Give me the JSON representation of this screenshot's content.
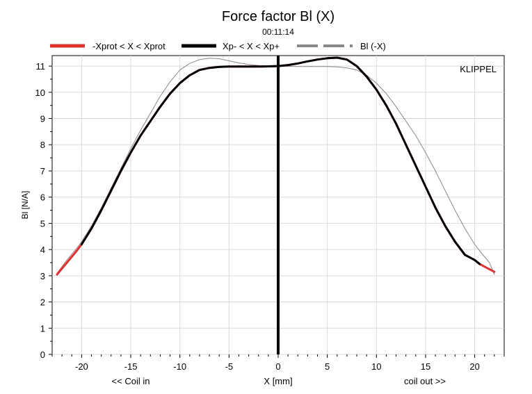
{
  "chart_data": {
    "type": "line",
    "title": "Force factor Bl (X)",
    "subtitle": "00:11:14",
    "watermark": "KLIPPEL",
    "xlabel": "X [mm]",
    "ylabel": "Bl [N/A]",
    "xlabel_left": "<< Coil in",
    "xlabel_right": "coil out >>",
    "xlim": [
      -23,
      23
    ],
    "ylim": [
      0,
      11.4
    ],
    "xticks": [
      -20,
      -15,
      -10,
      -5,
      0,
      5,
      10,
      15,
      20
    ],
    "yticks": [
      0,
      1,
      2,
      3,
      4,
      5,
      6,
      7,
      8,
      9,
      10,
      11
    ],
    "grid": true,
    "legend_position": "top",
    "legend": [
      {
        "label": "-Xprot < X < Xprot",
        "color": "#e03030",
        "style": "solid"
      },
      {
        "label": "Xp- < X < Xp+",
        "color": "#000000",
        "style": "solid"
      },
      {
        "label": "Bl (-X)",
        "color": "#888888",
        "style": "dashed"
      }
    ],
    "series": [
      {
        "name": "-Xprot < X < Xprot",
        "color": "#e03030",
        "x": [
          -22.5,
          -21.5,
          -20.5,
          -20,
          -19,
          -18,
          -17,
          -16,
          -15,
          -14,
          -13,
          -12,
          -11,
          -10,
          -9,
          -8,
          -7,
          -6,
          -5,
          -4,
          -3,
          -2,
          -1,
          0,
          1,
          2,
          3,
          4,
          5,
          6,
          7,
          8,
          9,
          10,
          11,
          12,
          13,
          14,
          15,
          16,
          17,
          18,
          19,
          20,
          20.5,
          21.5,
          22
        ],
        "y": [
          3.05,
          3.5,
          3.95,
          4.2,
          4.8,
          5.5,
          6.25,
          7.0,
          7.7,
          8.35,
          8.9,
          9.45,
          9.95,
          10.35,
          10.65,
          10.85,
          10.93,
          10.97,
          10.98,
          10.98,
          10.98,
          10.98,
          10.99,
          11.0,
          11.04,
          11.1,
          11.18,
          11.25,
          11.3,
          11.32,
          11.25,
          11.0,
          10.6,
          10.1,
          9.5,
          8.8,
          8.0,
          7.2,
          6.4,
          5.6,
          4.9,
          4.3,
          3.8,
          3.6,
          3.45,
          3.25,
          3.15
        ]
      },
      {
        "name": "Xp- < X < Xp+",
        "color": "#000000",
        "x": [
          -20,
          -19,
          -18,
          -17,
          -16,
          -15,
          -14,
          -13,
          -12,
          -11,
          -10,
          -9,
          -8,
          -7,
          -6,
          -5,
          -4,
          -3,
          -2,
          -1,
          0,
          1,
          2,
          3,
          4,
          5,
          6,
          7,
          8,
          9,
          10,
          11,
          12,
          13,
          14,
          15,
          16,
          17,
          18,
          19,
          20,
          20.5
        ],
        "y": [
          4.2,
          4.8,
          5.5,
          6.25,
          7.0,
          7.7,
          8.35,
          8.9,
          9.45,
          9.95,
          10.35,
          10.65,
          10.85,
          10.93,
          10.97,
          10.98,
          10.98,
          10.98,
          10.98,
          10.99,
          11.0,
          11.04,
          11.1,
          11.18,
          11.25,
          11.3,
          11.32,
          11.25,
          11.0,
          10.6,
          10.1,
          9.5,
          8.8,
          8.0,
          7.2,
          6.4,
          5.6,
          4.9,
          4.3,
          3.8,
          3.6,
          3.45
        ]
      },
      {
        "name": "Bl (-X)",
        "color": "#888888",
        "x": [
          -22.5,
          -21.5,
          -20.5,
          -20,
          -19,
          -18,
          -17,
          -16,
          -15,
          -14,
          -13,
          -12,
          -11,
          -10,
          -9,
          -8,
          -7,
          -6,
          -5,
          -4,
          -3,
          -2,
          -1,
          0,
          1,
          2,
          3,
          4,
          5,
          6,
          7,
          8,
          9,
          10,
          11,
          12,
          13,
          14,
          15,
          16,
          17,
          18,
          19,
          20,
          20.5,
          21.5,
          22
        ],
        "y": [
          3.1,
          3.6,
          4.05,
          4.3,
          4.9,
          5.6,
          6.35,
          7.1,
          7.85,
          8.55,
          9.2,
          9.85,
          10.4,
          10.85,
          11.1,
          11.25,
          11.3,
          11.28,
          11.2,
          11.12,
          11.06,
          11.02,
          11.0,
          11.0,
          10.99,
          10.98,
          10.98,
          10.98,
          10.98,
          10.97,
          10.93,
          10.85,
          10.65,
          10.35,
          9.95,
          9.45,
          8.9,
          8.35,
          7.7,
          7.0,
          6.25,
          5.5,
          4.8,
          4.2,
          3.95,
          3.5,
          3.05
        ]
      }
    ],
    "markers": [
      {
        "type": "vertical_line",
        "x": 0,
        "color": "#000000"
      }
    ]
  }
}
